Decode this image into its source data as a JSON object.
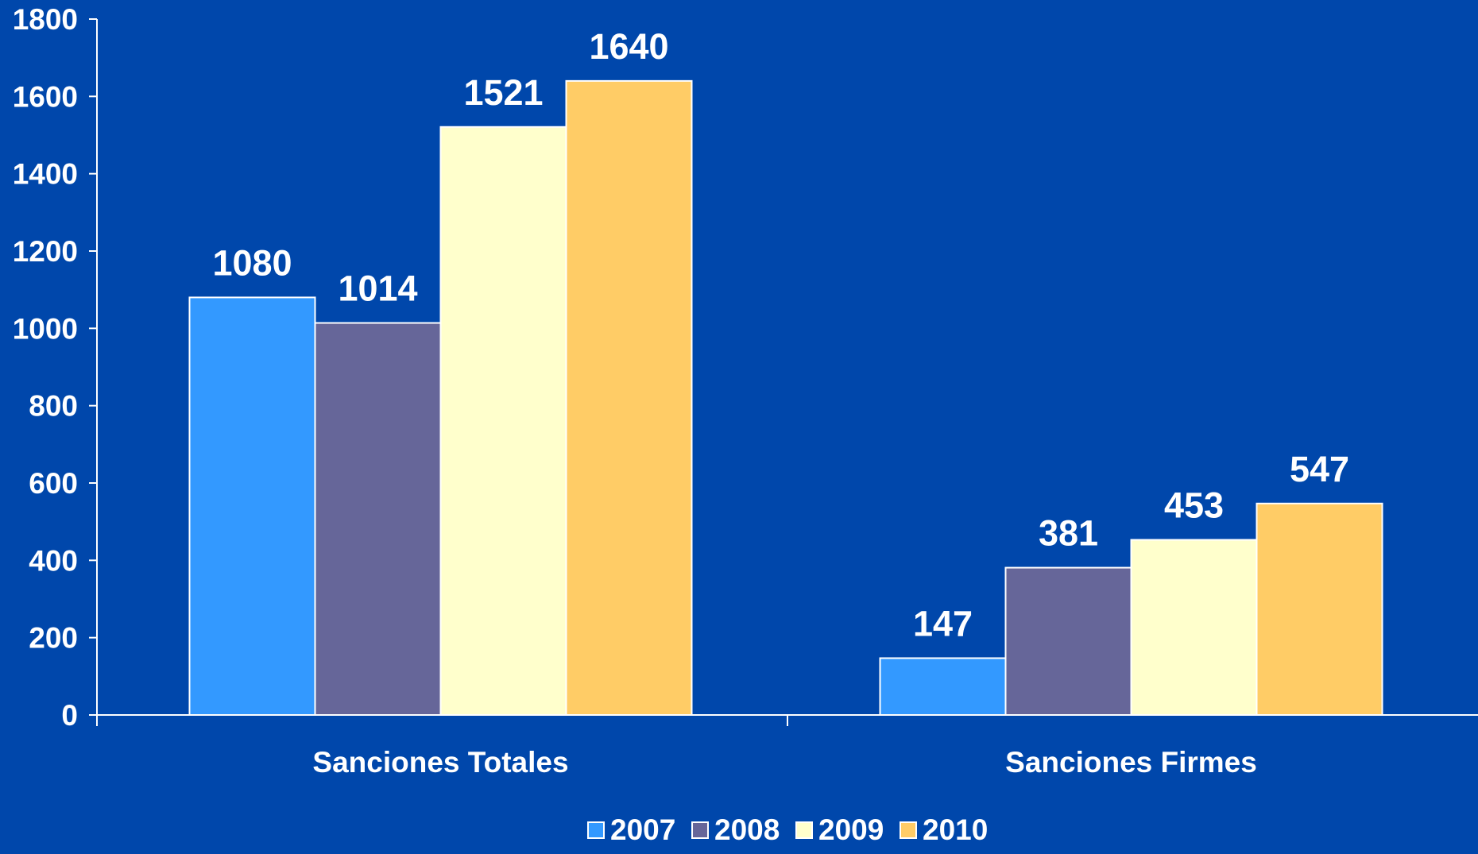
{
  "chart_data": {
    "type": "bar",
    "title": "",
    "xlabel": "",
    "ylabel": "",
    "categories": [
      "Sanciones Totales",
      "Sanciones Firmes"
    ],
    "series": [
      {
        "name": "2007",
        "values": [
          1080,
          147
        ],
        "color": "#3399FF"
      },
      {
        "name": "2008",
        "values": [
          1014,
          381
        ],
        "color": "#666699"
      },
      {
        "name": "2009",
        "values": [
          1521,
          453
        ],
        "color": "#FFFFCC"
      },
      {
        "name": "2010",
        "values": [
          1640,
          547
        ],
        "color": "#FFCC66"
      }
    ],
    "ylim": [
      0,
      1800
    ],
    "yticks": [
      0,
      200,
      400,
      600,
      800,
      1000,
      1200,
      1400,
      1600,
      1800
    ],
    "grid": false,
    "legend_position": "bottom-center",
    "data_labels": true,
    "colors": {
      "background": "#0047AB",
      "axis": "#FFFFFF",
      "text": "#FFFFFF",
      "bar_border": "#FFFFFF"
    }
  }
}
